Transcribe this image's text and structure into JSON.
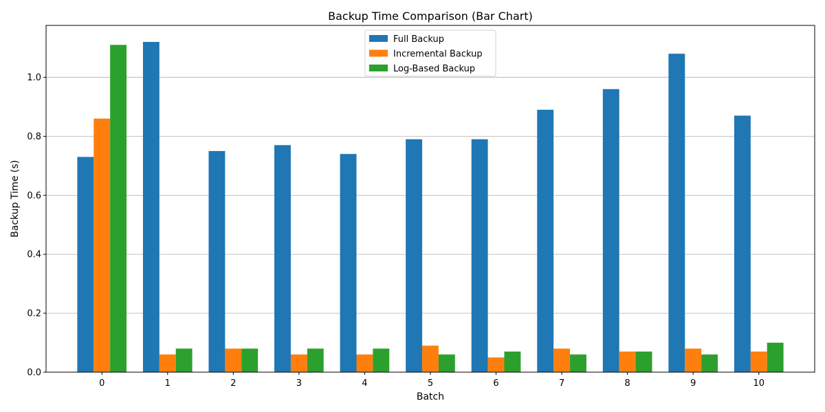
{
  "chart_data": {
    "type": "bar",
    "title": "Backup Time Comparison (Bar Chart)",
    "xlabel": "Batch",
    "ylabel": "Backup Time (s)",
    "categories": [
      "0",
      "1",
      "2",
      "3",
      "4",
      "5",
      "6",
      "7",
      "8",
      "9",
      "10"
    ],
    "series": [
      {
        "name": "Full Backup",
        "color": "#1f77b4",
        "values": [
          0.73,
          1.12,
          0.75,
          0.77,
          0.74,
          0.79,
          0.79,
          0.89,
          0.96,
          1.08,
          0.87
        ]
      },
      {
        "name": "Incremental Backup",
        "color": "#ff7f0e",
        "values": [
          0.86,
          0.06,
          0.08,
          0.06,
          0.06,
          0.09,
          0.05,
          0.08,
          0.07,
          0.08,
          0.07
        ]
      },
      {
        "name": "Log-Based Backup",
        "color": "#2ca02c",
        "values": [
          1.11,
          0.08,
          0.08,
          0.08,
          0.08,
          0.06,
          0.07,
          0.06,
          0.07,
          0.06,
          0.1
        ]
      }
    ],
    "ylim": [
      0,
      1.176
    ],
    "yticks": [
      "0.0",
      "0.2",
      "0.4",
      "0.6",
      "0.8",
      "1.0"
    ],
    "grid": "horizontal",
    "legend_position": "top-center"
  }
}
